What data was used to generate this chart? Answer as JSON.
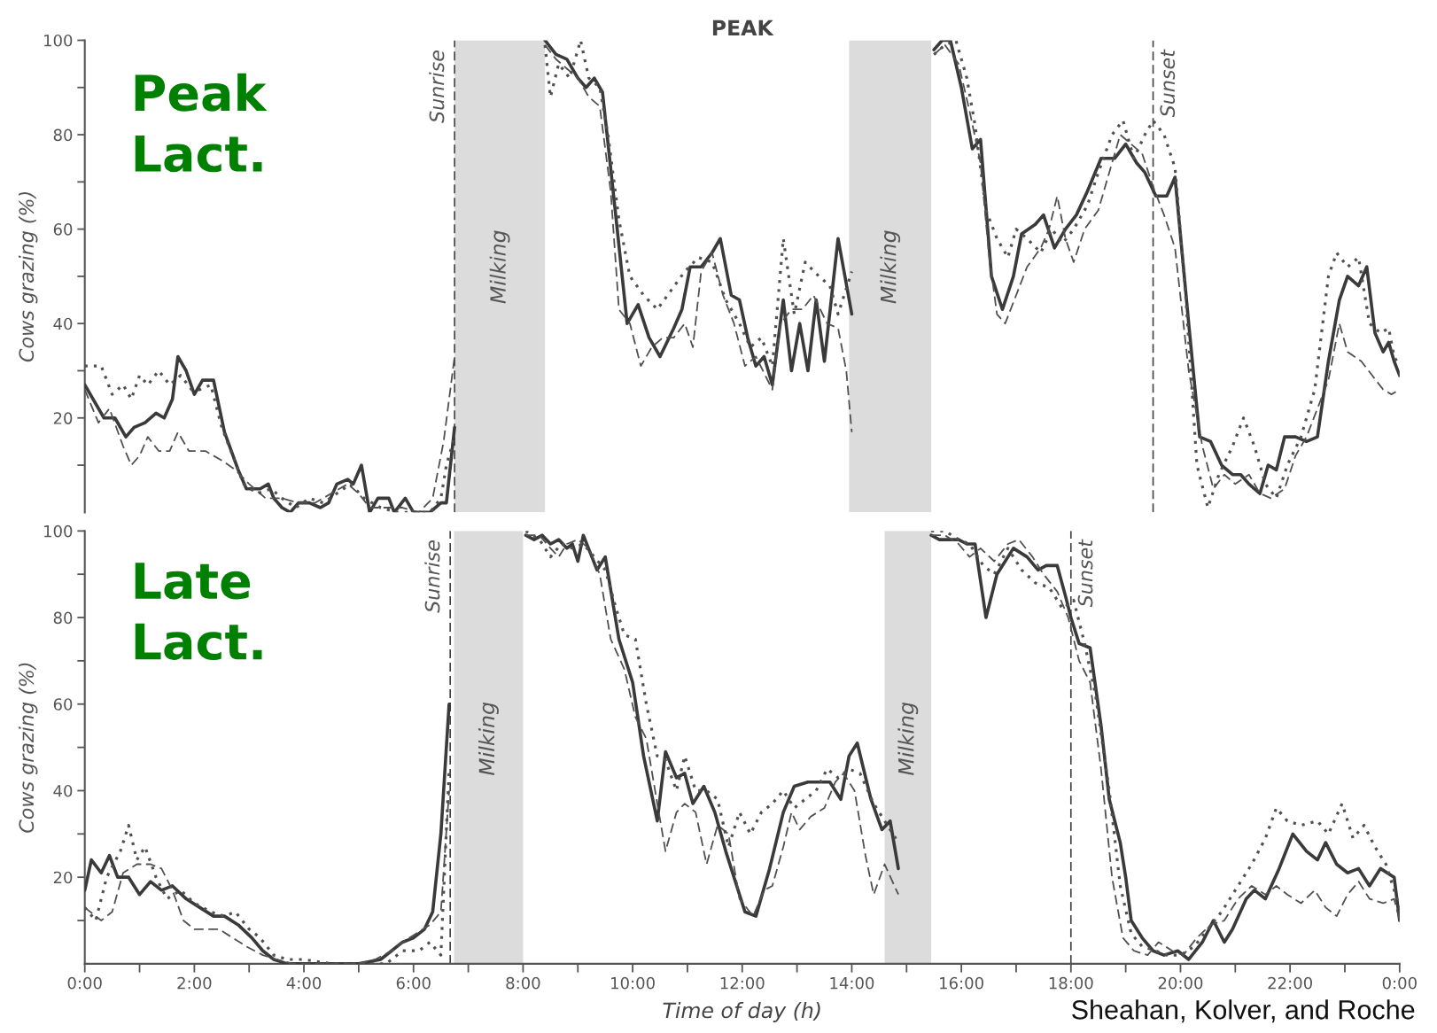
{
  "chart_data": [
    {
      "type": "line",
      "title": "PEAK",
      "ylabel": "Cows grazing (%)",
      "annotations": [
        "Peak\nLact."
      ],
      "xlim": [
        0,
        24
      ],
      "ylim": [
        0,
        100
      ],
      "yticks": [
        {
          "value": 10,
          "label": null
        },
        20,
        {
          "value": 30,
          "label": null
        },
        40,
        {
          "value": 50,
          "label": null
        },
        60,
        {
          "value": 70,
          "label": null
        },
        80,
        {
          "value": 90,
          "label": null
        },
        100
      ],
      "tick_labels": "y",
      "grid": false,
      "ref_lines": [
        {
          "axis": "x",
          "value": 6.75,
          "label": "Sunrise",
          "line_style": "dashed",
          "color": "#444444"
        },
        {
          "axis": "x",
          "value": 19.5,
          "label": "Sunset",
          "line_style": "dashed",
          "color": "#444444"
        }
      ],
      "bands": [
        {
          "axis": "x",
          "from": 6.75,
          "to": 8.4,
          "label": "Milking",
          "color": "#dcdcdc"
        },
        {
          "axis": "x",
          "from": 13.95,
          "to": 15.45,
          "label": "Milking",
          "color": "#dcdcdc"
        }
      ],
      "series": [
        {
          "color": "#3a3a3a",
          "line_style": "solid",
          "x": [
            0,
            0.2,
            0.35,
            0.55,
            0.75,
            0.9,
            1.1,
            1.3,
            1.45,
            1.6,
            1.7,
            1.85,
            2.0,
            2.15,
            2.35,
            2.55,
            2.8,
            2.95,
            3.2,
            3.35,
            3.45,
            3.6,
            3.75,
            3.9,
            4.1,
            4.3,
            4.45,
            4.6,
            4.8,
            4.9,
            5.05,
            5.2,
            5.35,
            5.55,
            5.65,
            5.85,
            6.0,
            6.3,
            6.5,
            6.6,
            6.75,
            7.5,
            8.4,
            8.6,
            8.8,
            9.0,
            9.15,
            9.3,
            9.45,
            9.7,
            9.9,
            10.1,
            10.3,
            10.5,
            10.75,
            10.9,
            11.05,
            11.25,
            11.45,
            11.6,
            11.8,
            11.95,
            12.1,
            12.25,
            12.4,
            12.55,
            12.75,
            12.9,
            13.05,
            13.2,
            13.35,
            13.5,
            13.75,
            14.0,
            14.7,
            15.5,
            15.65,
            15.8,
            16.0,
            16.2,
            16.35,
            16.55,
            16.75,
            16.95,
            17.1,
            17.35,
            17.5,
            17.7,
            17.9,
            18.1,
            18.3,
            18.55,
            18.8,
            19.0,
            19.2,
            19.35,
            19.55,
            19.75,
            19.9,
            20.15,
            20.35,
            20.55,
            20.75,
            20.95,
            21.1,
            21.25,
            21.45,
            21.6,
            21.75,
            21.9,
            22.1,
            22.3,
            22.5,
            22.7,
            22.9,
            23.05,
            23.25,
            23.4,
            23.55,
            23.7,
            23.8,
            23.9,
            24.0
          ],
          "values": [
            27,
            23,
            20,
            20,
            16,
            18,
            19,
            21,
            20,
            24,
            33,
            30,
            25,
            28,
            28,
            17,
            9,
            5,
            5,
            6,
            3,
            1,
            0,
            2,
            2,
            1,
            2,
            6,
            7,
            6,
            10,
            0,
            3,
            3,
            0,
            3,
            0,
            0,
            2,
            2,
            18,
            null,
            100,
            97,
            96,
            92,
            90,
            92,
            89,
            62,
            40,
            44,
            37,
            33,
            39,
            43,
            52,
            52,
            55,
            58,
            46,
            45,
            37,
            31,
            33,
            27,
            45,
            30,
            40,
            30,
            45,
            32,
            58,
            42,
            null,
            98,
            100,
            100,
            90,
            77,
            79,
            50,
            43,
            50,
            59,
            61,
            63,
            56,
            60,
            63,
            68,
            75,
            75,
            78,
            74,
            72,
            67,
            67,
            71,
            40,
            16,
            15,
            10,
            8,
            8,
            6,
            4,
            10,
            9,
            16,
            16,
            15,
            16,
            32,
            45,
            50,
            48,
            52,
            38,
            34,
            36,
            32,
            29
          ]
        },
        {
          "color": "#505050",
          "line_style": "dotted",
          "x": [
            0,
            0.3,
            0.5,
            0.7,
            0.85,
            1.0,
            1.15,
            1.35,
            1.55,
            1.75,
            1.95,
            2.1,
            2.3,
            2.5,
            2.7,
            2.9,
            3.15,
            3.4,
            3.6,
            3.85,
            4.1,
            4.35,
            4.6,
            4.85,
            5.1,
            5.4,
            5.7,
            6.0,
            6.3,
            6.5,
            6.6,
            6.75,
            7.5,
            8.4,
            8.5,
            8.65,
            8.85,
            9.05,
            9.2,
            9.4,
            9.55,
            9.75,
            9.95,
            10.2,
            10.45,
            10.7,
            10.95,
            11.2,
            11.45,
            11.7,
            11.95,
            12.15,
            12.35,
            12.55,
            12.75,
            12.95,
            13.15,
            13.4,
            13.6,
            13.75,
            14.0,
            14.7,
            15.5,
            15.7,
            15.9,
            16.1,
            16.25,
            16.45,
            16.65,
            16.85,
            17.0,
            17.2,
            17.45,
            17.65,
            17.85,
            18.05,
            18.3,
            18.5,
            18.75,
            18.95,
            19.15,
            19.35,
            19.5,
            19.7,
            19.9,
            20.1,
            20.3,
            20.5,
            20.7,
            20.95,
            21.15,
            21.35,
            21.55,
            21.75,
            21.95,
            22.2,
            22.45,
            22.7,
            22.85,
            23.05,
            23.25,
            23.45,
            23.65,
            23.8,
            23.9,
            24.0
          ],
          "values": [
            31,
            31,
            25,
            27,
            24,
            29,
            27,
            30,
            27,
            29,
            26,
            26,
            27,
            18,
            12,
            6,
            4,
            5,
            3,
            1,
            3,
            2,
            4,
            6,
            3,
            1,
            0,
            0,
            0,
            3,
            10,
            16,
            null,
            99,
            88,
            95,
            92,
            100,
            92,
            90,
            80,
            62,
            50,
            46,
            43,
            47,
            51,
            54,
            53,
            45,
            40,
            35,
            37,
            31,
            58,
            42,
            53,
            50,
            48,
            42,
            51,
            null,
            97,
            99,
            100,
            92,
            82,
            64,
            58,
            54,
            60,
            58,
            55,
            60,
            57,
            60,
            65,
            72,
            80,
            83,
            75,
            80,
            83,
            80,
            73,
            45,
            10,
            1,
            8,
            14,
            20,
            14,
            6,
            3,
            10,
            16,
            26,
            50,
            55,
            52,
            54,
            40,
            38,
            39,
            33,
            31
          ]
        },
        {
          "color": "#505050",
          "line_style": "dashed",
          "x": [
            0,
            0.25,
            0.45,
            0.7,
            0.85,
            1.0,
            1.15,
            1.35,
            1.55,
            1.7,
            1.9,
            2.2,
            2.5,
            2.75,
            3.0,
            3.3,
            3.6,
            3.9,
            4.2,
            4.5,
            4.8,
            5.0,
            5.2,
            5.5,
            5.8,
            6.1,
            6.35,
            6.55,
            6.75,
            7.5,
            8.4,
            8.6,
            8.8,
            9.0,
            9.2,
            9.4,
            9.6,
            9.75,
            9.95,
            10.15,
            10.35,
            10.55,
            10.75,
            10.95,
            11.1,
            11.25,
            11.45,
            11.65,
            11.85,
            12.05,
            12.25,
            12.55,
            12.7,
            12.9,
            13.1,
            13.3,
            13.55,
            13.75,
            13.9,
            14.0,
            14.7,
            15.5,
            15.7,
            15.95,
            16.15,
            16.35,
            16.5,
            16.65,
            16.8,
            17.0,
            17.2,
            17.45,
            17.6,
            17.75,
            17.9,
            18.05,
            18.25,
            18.5,
            18.7,
            18.9,
            19.1,
            19.3,
            19.5,
            19.7,
            19.9,
            20.15,
            20.4,
            20.6,
            20.8,
            21.0,
            21.25,
            21.45,
            21.65,
            21.9,
            22.1,
            22.3,
            22.5,
            22.7,
            22.9,
            23.05,
            23.3,
            23.5,
            23.7,
            23.85,
            24.0
          ],
          "values": [
            26,
            19,
            22,
            14,
            10,
            12,
            16,
            13,
            13,
            17,
            13,
            13,
            11,
            9,
            6,
            3,
            3,
            2,
            2,
            4,
            6,
            4,
            1,
            1,
            1,
            0,
            3,
            15,
            33,
            null,
            99,
            96,
            94,
            92,
            88,
            86,
            68,
            43,
            40,
            31,
            35,
            37,
            37,
            40,
            35,
            51,
            55,
            46,
            40,
            31,
            33,
            26,
            40,
            43,
            43,
            46,
            40,
            39,
            30,
            17,
            null,
            97,
            99,
            95,
            85,
            74,
            55,
            42,
            40,
            46,
            52,
            56,
            60,
            67,
            58,
            53,
            60,
            64,
            72,
            80,
            78,
            76,
            69,
            63,
            56,
            30,
            14,
            5,
            8,
            6,
            8,
            4,
            3,
            5,
            12,
            16,
            22,
            28,
            40,
            34,
            32,
            29,
            26,
            25,
            26
          ]
        }
      ]
    },
    {
      "type": "line",
      "ylabel": "Cows grazing (%)",
      "xlabel": "Time of day (h)",
      "annotations": [
        "Late\nLact.",
        "Sheahan, Kolver, and Roche"
      ],
      "xlim": [
        0,
        24
      ],
      "ylim": [
        0,
        100
      ],
      "xticks": [
        {
          "value": 0,
          "label": "0:00"
        },
        {
          "value": 1,
          "label": null
        },
        {
          "value": 2,
          "label": "2:00"
        },
        {
          "value": 3,
          "label": null
        },
        {
          "value": 4,
          "label": "4:00"
        },
        {
          "value": 5,
          "label": null
        },
        {
          "value": 6,
          "label": "6:00"
        },
        {
          "value": 7,
          "label": null
        },
        {
          "value": 8,
          "label": "8:00"
        },
        {
          "value": 9,
          "label": null
        },
        {
          "value": 10,
          "label": "10:00"
        },
        {
          "value": 11,
          "label": null
        },
        {
          "value": 12,
          "label": "12:00"
        },
        {
          "value": 13,
          "label": null
        },
        {
          "value": 14,
          "label": "14:00"
        },
        {
          "value": 15,
          "label": null
        },
        {
          "value": 16,
          "label": "16:00"
        },
        {
          "value": 17,
          "label": null
        },
        {
          "value": 18,
          "label": "18:00"
        },
        {
          "value": 19,
          "label": null
        },
        {
          "value": 20,
          "label": "20:00"
        },
        {
          "value": 21,
          "label": null
        },
        {
          "value": 22,
          "label": "22:00"
        },
        {
          "value": 23,
          "label": null
        },
        {
          "value": 24,
          "label": "0:00"
        }
      ],
      "yticks": [
        {
          "value": 10,
          "label": null
        },
        20,
        {
          "value": 30,
          "label": null
        },
        40,
        {
          "value": 50,
          "label": null
        },
        60,
        {
          "value": 70,
          "label": null
        },
        80,
        {
          "value": 90,
          "label": null
        },
        100
      ],
      "grid": false,
      "ref_lines": [
        {
          "axis": "x",
          "value": 6.67,
          "label": "Sunrise",
          "line_style": "dashed",
          "color": "#444444"
        },
        {
          "axis": "x",
          "value": 18.0,
          "label": "Sunset",
          "line_style": "dashed",
          "color": "#444444"
        }
      ],
      "bands": [
        {
          "axis": "x",
          "from": 6.74,
          "to": 8.0,
          "label": "Milking",
          "color": "#dcdcdc"
        },
        {
          "axis": "x",
          "from": 14.6,
          "to": 15.45,
          "label": "Milking",
          "color": "#dcdcdc"
        }
      ],
      "series": [
        {
          "color": "#3a3a3a",
          "line_style": "solid",
          "x": [
            0,
            0.12,
            0.3,
            0.45,
            0.6,
            0.8,
            1.0,
            1.2,
            1.4,
            1.6,
            1.85,
            2.1,
            2.35,
            2.55,
            2.8,
            3.05,
            3.25,
            3.45,
            3.7,
            4.0,
            4.5,
            5.0,
            5.4,
            5.6,
            5.8,
            6.0,
            6.2,
            6.35,
            6.5,
            6.65,
            7.4,
            8.05,
            8.2,
            8.35,
            8.5,
            8.65,
            8.8,
            8.9,
            9.0,
            9.1,
            9.35,
            9.5,
            9.75,
            10.0,
            10.2,
            10.45,
            10.6,
            10.8,
            10.95,
            11.1,
            11.3,
            11.5,
            11.7,
            11.9,
            12.05,
            12.25,
            12.5,
            12.75,
            12.95,
            13.2,
            13.45,
            13.6,
            13.8,
            13.95,
            14.1,
            14.35,
            14.55,
            14.7,
            14.85,
            15.2,
            15.45,
            15.6,
            15.95,
            16.1,
            16.25,
            16.45,
            16.65,
            16.95,
            17.2,
            17.4,
            17.55,
            17.75,
            17.9,
            18.0,
            18.15,
            18.35,
            18.55,
            18.7,
            18.9,
            19.0,
            19.1,
            19.3,
            19.5,
            19.7,
            19.95,
            20.15,
            20.4,
            20.6,
            20.8,
            20.95,
            21.2,
            21.35,
            21.55,
            21.8,
            22.05,
            22.3,
            22.5,
            22.65,
            22.85,
            23.05,
            23.25,
            23.45,
            23.65,
            23.9,
            24.0
          ],
          "values": [
            17,
            24,
            21,
            25,
            20,
            20,
            16,
            19,
            17,
            18,
            15,
            13,
            11,
            11,
            9,
            6,
            3,
            1,
            0,
            0,
            0,
            0,
            1,
            3,
            5,
            6,
            8,
            12,
            30,
            60,
            null,
            99,
            98,
            99,
            97,
            98,
            96,
            97,
            93,
            99,
            91,
            94,
            75,
            65,
            48,
            33,
            49,
            43,
            44,
            37,
            41,
            35,
            26,
            18,
            12,
            11,
            22,
            35,
            41,
            42,
            42,
            42,
            38,
            48,
            51,
            38,
            31,
            33,
            22,
            null,
            99,
            98,
            98,
            97,
            97,
            80,
            90,
            96,
            94,
            91,
            92,
            92,
            85,
            80,
            74,
            73,
            55,
            38,
            28,
            20,
            10,
            6,
            3,
            2,
            3,
            1,
            5,
            10,
            5,
            8,
            15,
            17,
            15,
            22,
            30,
            26,
            24,
            28,
            23,
            21,
            22,
            18,
            22,
            20,
            10
          ]
        },
        {
          "color": "#505050",
          "line_style": "dotted",
          "x": [
            0,
            0.2,
            0.4,
            0.65,
            0.8,
            0.95,
            1.1,
            1.3,
            1.5,
            1.75,
            2.0,
            2.3,
            2.55,
            2.75,
            3.0,
            3.2,
            3.45,
            3.7,
            4.0,
            4.5,
            5.0,
            5.5,
            5.8,
            6.1,
            6.3,
            6.5,
            6.65,
            7.4,
            8.05,
            8.3,
            8.5,
            8.7,
            8.9,
            9.1,
            9.3,
            9.5,
            9.7,
            9.85,
            10.05,
            10.25,
            10.45,
            10.6,
            10.8,
            10.95,
            11.15,
            11.35,
            11.55,
            11.75,
            11.95,
            12.15,
            12.35,
            12.55,
            12.75,
            12.95,
            13.15,
            13.35,
            13.55,
            13.75,
            13.95,
            14.15,
            14.4,
            14.6,
            14.85,
            15.2,
            15.45,
            15.7,
            15.95,
            16.15,
            16.4,
            16.6,
            16.85,
            17.1,
            17.35,
            17.6,
            17.85,
            18.05,
            18.25,
            18.45,
            18.7,
            18.9,
            19.1,
            19.3,
            19.55,
            19.75,
            20.0,
            20.25,
            20.5,
            20.75,
            21.05,
            21.3,
            21.55,
            21.75,
            21.95,
            22.2,
            22.5,
            22.7,
            22.95,
            23.15,
            23.35,
            23.55,
            23.75,
            24.0
          ],
          "values": [
            13,
            10,
            20,
            26,
            32,
            24,
            27,
            20,
            15,
            17,
            14,
            12,
            11,
            12,
            8,
            6,
            2,
            1,
            1,
            0,
            0,
            0,
            3,
            3,
            5,
            2,
            45,
            null,
            100,
            98,
            94,
            97,
            96,
            97,
            94,
            91,
            82,
            76,
            75,
            60,
            48,
            47,
            40,
            48,
            40,
            40,
            38,
            27,
            35,
            30,
            35,
            37,
            40,
            36,
            38,
            40,
            45,
            43,
            45,
            44,
            37,
            33,
            28,
            null,
            100,
            100,
            98,
            97,
            92,
            90,
            96,
            91,
            88,
            87,
            82,
            84,
            74,
            62,
            40,
            18,
            7,
            4,
            3,
            2,
            2,
            4,
            8,
            12,
            18,
            23,
            29,
            36,
            33,
            32,
            33,
            30,
            37,
            29,
            32,
            27,
            23,
            13
          ]
        },
        {
          "color": "#505050",
          "line_style": "dashed",
          "x": [
            0,
            0.3,
            0.5,
            0.7,
            0.95,
            1.2,
            1.4,
            1.6,
            1.8,
            2.0,
            2.2,
            2.45,
            2.7,
            2.95,
            3.25,
            3.5,
            3.8,
            4.5,
            5.0,
            5.3,
            5.6,
            5.8,
            6.05,
            6.3,
            6.5,
            6.65,
            7.4,
            8.05,
            8.3,
            8.5,
            8.65,
            8.8,
            9.0,
            9.2,
            9.4,
            9.6,
            9.85,
            10.05,
            10.25,
            10.45,
            10.6,
            10.8,
            10.95,
            11.15,
            11.35,
            11.55,
            11.75,
            11.95,
            12.2,
            12.4,
            12.55,
            12.75,
            12.9,
            13.05,
            13.25,
            13.5,
            13.7,
            13.85,
            14.05,
            14.25,
            14.4,
            14.6,
            14.85,
            15.2,
            15.45,
            15.7,
            15.95,
            16.15,
            16.35,
            16.6,
            16.85,
            17.05,
            17.3,
            17.5,
            17.75,
            17.95,
            18.15,
            18.35,
            18.55,
            18.75,
            18.95,
            19.15,
            19.4,
            19.6,
            19.85,
            20.05,
            20.3,
            20.55,
            20.8,
            21.05,
            21.3,
            21.55,
            21.75,
            21.95,
            22.2,
            22.45,
            22.65,
            22.85,
            23.05,
            23.25,
            23.45,
            23.7,
            23.9,
            24.0
          ],
          "values": [
            13,
            10,
            12,
            21,
            23,
            23,
            22,
            17,
            10,
            8,
            8,
            8,
            6,
            4,
            2,
            1,
            0,
            0,
            0,
            1,
            3,
            5,
            7,
            9,
            12,
            40,
            null,
            99,
            99,
            96,
            94,
            97,
            98,
            96,
            90,
            75,
            68,
            57,
            52,
            37,
            26,
            35,
            37,
            35,
            23,
            32,
            30,
            15,
            11,
            17,
            18,
            27,
            35,
            31,
            34,
            36,
            42,
            44,
            40,
            25,
            16,
            23,
            16,
            null,
            99,
            99,
            97,
            94,
            96,
            93,
            97,
            98,
            94,
            90,
            86,
            80,
            70,
            65,
            45,
            20,
            6,
            3,
            2,
            5,
            3,
            2,
            6,
            9,
            10,
            15,
            18,
            16,
            18,
            16,
            14,
            17,
            13,
            11,
            16,
            19,
            15,
            14,
            15,
            10
          ]
        }
      ]
    }
  ]
}
